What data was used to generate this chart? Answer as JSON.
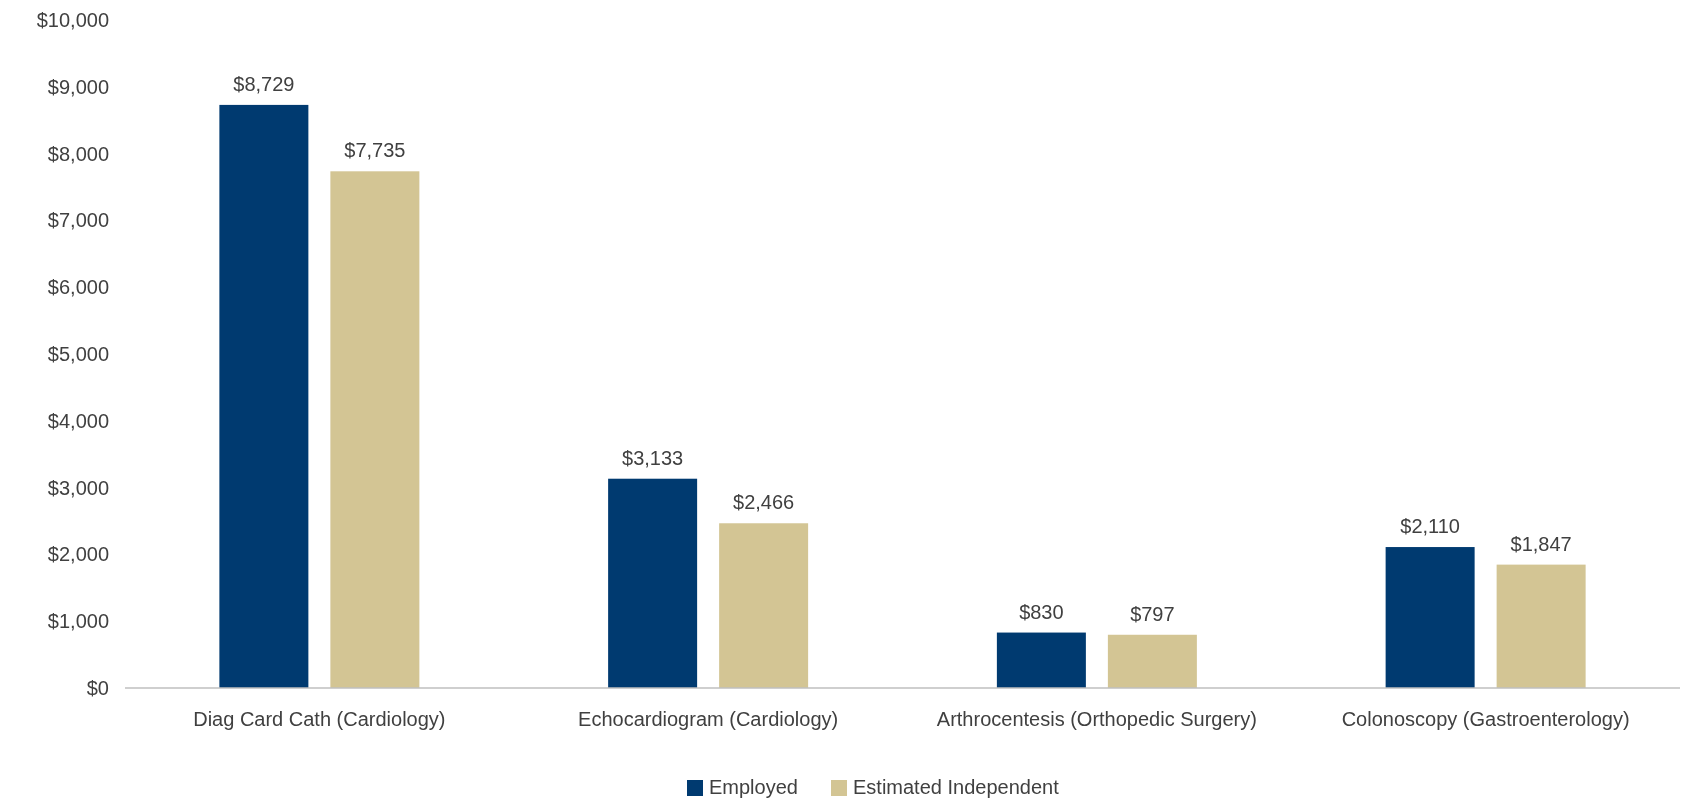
{
  "chart_data": {
    "type": "bar",
    "categories": [
      "Diag Card Cath (Cardiology)",
      "Echocardiogram (Cardiology)",
      "Arthrocentesis (Orthopedic Surgery)",
      "Colonoscopy (Gastroenterology)"
    ],
    "series": [
      {
        "name": "Employed",
        "color": "#003a70",
        "values": [
          8729,
          3133,
          830,
          2110
        ],
        "value_labels": [
          "$8,729",
          "$3,133",
          "$830",
          "$2,110"
        ]
      },
      {
        "name": "Estimated Independent",
        "color": "#d3c594",
        "values": [
          7735,
          2466,
          797,
          1847
        ],
        "value_labels": [
          "$7,735",
          "$2,466",
          "$797",
          "$1,847"
        ]
      }
    ],
    "ylim": [
      0,
      10000
    ],
    "yticks": [
      {
        "value": 0,
        "label": "$0"
      },
      {
        "value": 1000,
        "label": "$1,000"
      },
      {
        "value": 2000,
        "label": "$2,000"
      },
      {
        "value": 3000,
        "label": "$3,000"
      },
      {
        "value": 4000,
        "label": "$4,000"
      },
      {
        "value": 5000,
        "label": "$5,000"
      },
      {
        "value": 6000,
        "label": "$6,000"
      },
      {
        "value": 7000,
        "label": "$7,000"
      },
      {
        "value": 8000,
        "label": "$8,000"
      },
      {
        "value": 9000,
        "label": "$9,000"
      },
      {
        "value": 10000,
        "label": "$10,000"
      }
    ],
    "legend": "bottom",
    "grid": false
  }
}
